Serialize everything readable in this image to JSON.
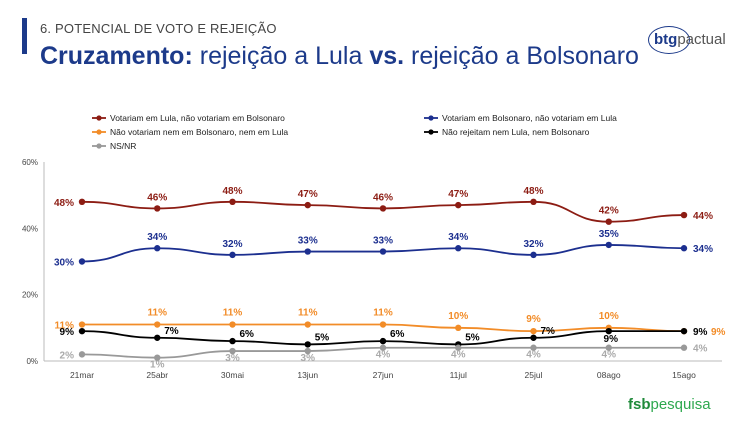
{
  "header": {
    "section": "6. POTENCIAL DE VOTO E REJEIÇÃO",
    "title_bold_1": "Cruzamento:",
    "title_text_1": " rejeição a Lula ",
    "title_bold_2": "vs.",
    "title_text_2": " rejeição a Bolsonaro"
  },
  "logos": {
    "btg_bold": "btg",
    "btg_light": "pactual",
    "fsb_bold": "fsb",
    "fsb_light": "pesquisa"
  },
  "chart_data": {
    "type": "line",
    "categories": [
      "21mar",
      "25abr",
      "30mai",
      "13jun",
      "27jun",
      "11jul",
      "25jul",
      "08ago",
      "15ago"
    ],
    "yticks": [
      "0%",
      "20%",
      "40%",
      "60%"
    ],
    "ylim": [
      0,
      60
    ],
    "grid": false,
    "legend_position": "top-left",
    "series": [
      {
        "name": "Votariam em Lula, não votariam em Bolsonaro",
        "color": "#8c1c13",
        "values": [
          48,
          46,
          48,
          47,
          46,
          47,
          48,
          42,
          44
        ],
        "labels": [
          "48%",
          "46%",
          "48%",
          "47%",
          "46%",
          "47%",
          "48%",
          "42%",
          "44%"
        ]
      },
      {
        "name": "Votariam em Bolsonaro, não votariam em Lula",
        "color": "#1c2f8f",
        "values": [
          30,
          34,
          32,
          33,
          33,
          34,
          32,
          35,
          34
        ],
        "labels": [
          "30%",
          "34%",
          "32%",
          "33%",
          "33%",
          "34%",
          "32%",
          "35%",
          "34%"
        ]
      },
      {
        "name": "Não votariam nem em Bolsonaro, nem em Lula",
        "color": "#f28c28",
        "values": [
          11,
          11,
          11,
          11,
          11,
          10,
          9,
          10,
          9
        ],
        "labels": [
          "11%",
          "11%",
          "11%",
          "11%",
          "11%",
          "10%",
          "9%",
          "10%",
          "9%"
        ]
      },
      {
        "name": "Não rejeitam nem Lula, nem Bolsonaro",
        "color": "#000000",
        "values": [
          9,
          7,
          6,
          5,
          6,
          5,
          7,
          9,
          9
        ],
        "labels": [
          "9%",
          "7%",
          "6%",
          "5%",
          "6%",
          "5%",
          "7%",
          "9%",
          "9%"
        ]
      },
      {
        "name": "NS/NR",
        "color": "#999999",
        "values": [
          2,
          1,
          3,
          3,
          4,
          4,
          4,
          4,
          4
        ],
        "labels": [
          "2%",
          "1%",
          "3%",
          "3%",
          "4%",
          "4%",
          "4%",
          "4%",
          "4%"
        ]
      }
    ]
  }
}
